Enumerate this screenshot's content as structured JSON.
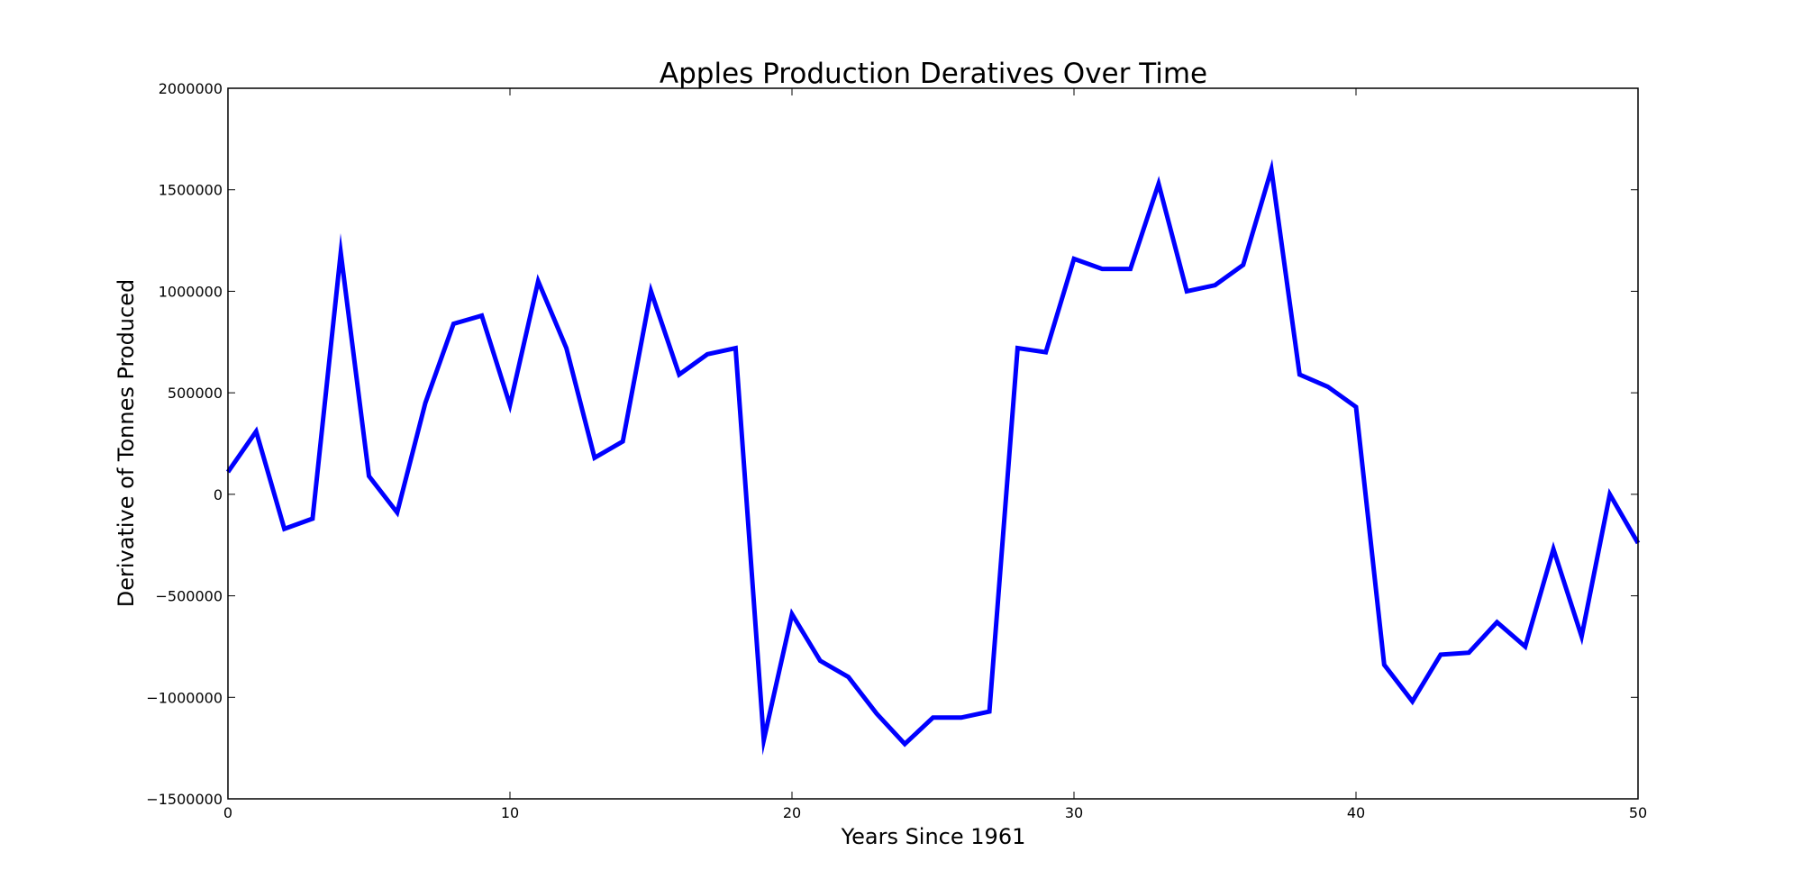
{
  "chart_data": {
    "type": "line",
    "title": "Apples Production Deratives Over Time",
    "xlabel": "Years Since 1961",
    "ylabel": "Derivative of Tonnes Produced",
    "xlim": [
      0,
      50
    ],
    "ylim": [
      -1500000,
      2000000
    ],
    "xticks": [
      0,
      10,
      20,
      30,
      40,
      50
    ],
    "xtick_labels": [
      "0",
      "10",
      "20",
      "30",
      "40",
      "50"
    ],
    "yticks": [
      -1500000,
      -1000000,
      -500000,
      0,
      500000,
      1000000,
      1500000,
      2000000
    ],
    "ytick_labels": [
      "−1500000",
      "−1000000",
      "−500000",
      "0",
      "500000",
      "1000000",
      "1500000",
      "2000000"
    ],
    "grid": false,
    "legend": "none",
    "series": [
      {
        "color": "#0000ff",
        "x": [
          0,
          1,
          2,
          3,
          4,
          5,
          6,
          7,
          8,
          9,
          10,
          11,
          12,
          13,
          14,
          15,
          16,
          17,
          18,
          19,
          20,
          21,
          22,
          23,
          24,
          25,
          26,
          27,
          28,
          29,
          30,
          31,
          32,
          33,
          34,
          35,
          36,
          37,
          38,
          39,
          40,
          41,
          42,
          43,
          44,
          45,
          46,
          47,
          48,
          49,
          50
        ],
        "y": [
          110000,
          310000,
          -170000,
          -120000,
          1190000,
          90000,
          -90000,
          450000,
          840000,
          880000,
          440000,
          1050000,
          720000,
          180000,
          260000,
          1000000,
          590000,
          690000,
          720000,
          -1210000,
          -590000,
          -820000,
          -900000,
          -1080000,
          -1230000,
          -1100000,
          -1100000,
          -1070000,
          720000,
          700000,
          1160000,
          1110000,
          1110000,
          1530000,
          1000000,
          1030000,
          1130000,
          1600000,
          590000,
          530000,
          430000,
          -840000,
          -1020000,
          -790000,
          -780000,
          -630000,
          -750000,
          -270000,
          -700000,
          0,
          -240000
        ]
      }
    ]
  }
}
